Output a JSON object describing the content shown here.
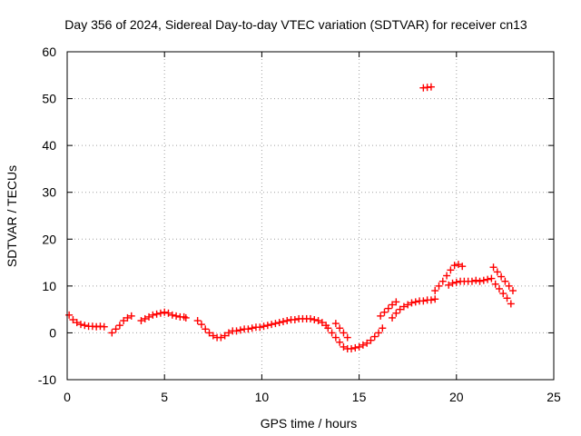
{
  "chart_data": {
    "type": "scatter",
    "title": "Day 356 of 2024, Sidereal Day-to-day VTEC variation (SDTVAR) for receiver cn13",
    "xlabel": "GPS time / hours",
    "ylabel": "SDTVAR / TECUs",
    "xlim": [
      0,
      25
    ],
    "ylim": [
      -10,
      60
    ],
    "xticks": [
      0,
      5,
      10,
      15,
      20,
      25
    ],
    "yticks": [
      -10,
      0,
      10,
      20,
      30,
      40,
      50,
      60
    ],
    "grid": true,
    "marker": "+",
    "color": "#ff0000",
    "series": [
      {
        "name": "SDTVAR",
        "x": [
          0.1,
          0.3,
          0.5,
          0.7,
          0.9,
          1.1,
          1.3,
          1.5,
          1.7,
          1.9,
          2.3,
          2.5,
          2.7,
          2.9,
          3.1,
          3.3,
          3.8,
          4.0,
          4.2,
          4.4,
          4.6,
          4.8,
          5.0,
          5.2,
          5.4,
          5.6,
          5.8,
          6.0,
          6.1,
          6.7,
          6.9,
          7.1,
          7.3,
          7.5,
          7.7,
          7.9,
          8.1,
          8.3,
          8.5,
          8.7,
          8.9,
          9.1,
          9.3,
          9.5,
          9.7,
          9.9,
          10.1,
          10.3,
          10.5,
          10.7,
          10.9,
          11.1,
          11.3,
          11.5,
          11.7,
          11.9,
          12.1,
          12.3,
          12.5,
          12.7,
          12.9,
          13.1,
          13.3,
          13.4,
          13.6,
          13.8,
          14.0,
          14.2,
          14.4,
          14.6,
          14.8,
          15.0,
          15.2,
          15.4,
          15.6,
          15.8,
          16.0,
          16.2,
          13.8,
          14.0,
          14.2,
          14.4,
          16.1,
          16.3,
          16.5,
          16.7,
          16.9,
          16.7,
          16.9,
          17.1,
          17.3,
          17.5,
          17.7,
          17.9,
          18.1,
          18.3,
          18.5,
          18.7,
          18.9,
          18.3,
          18.5,
          18.7,
          18.9,
          19.1,
          19.3,
          19.5,
          19.7,
          19.9,
          20.1,
          20.3,
          19.6,
          19.8,
          20.0,
          20.2,
          20.4,
          20.6,
          20.8,
          21.0,
          21.2,
          21.4,
          21.6,
          21.8,
          21.9,
          22.1,
          22.3,
          22.5,
          22.7,
          22.9,
          22.0,
          22.2,
          22.4,
          22.6,
          22.8
        ],
        "y": [
          3.8,
          2.8,
          2.2,
          1.8,
          1.6,
          1.4,
          1.4,
          1.3,
          1.4,
          1.3,
          0.0,
          0.8,
          1.6,
          2.6,
          3.2,
          3.6,
          2.6,
          3.0,
          3.4,
          3.8,
          4.0,
          4.2,
          4.4,
          4.2,
          3.8,
          3.6,
          3.4,
          3.4,
          3.2,
          2.6,
          1.8,
          0.8,
          0.0,
          -0.6,
          -1.0,
          -1.0,
          -0.6,
          0.0,
          0.4,
          0.4,
          0.6,
          0.8,
          0.8,
          1.0,
          1.2,
          1.2,
          1.4,
          1.6,
          1.8,
          2.0,
          2.2,
          2.4,
          2.6,
          2.8,
          2.8,
          3.0,
          3.0,
          3.0,
          3.0,
          2.8,
          2.6,
          2.2,
          1.6,
          1.0,
          0.0,
          -1.0,
          -2.0,
          -3.0,
          -3.4,
          -3.4,
          -3.2,
          -3.0,
          -2.6,
          -2.2,
          -1.6,
          -0.8,
          0.0,
          1.0,
          2.0,
          1.0,
          0.0,
          -1.0,
          3.6,
          4.4,
          5.2,
          6.0,
          6.6,
          3.2,
          4.2,
          5.0,
          5.6,
          6.0,
          6.4,
          6.6,
          6.8,
          6.8,
          7.0,
          7.0,
          7.2,
          52.3,
          52.4,
          52.5,
          9.0,
          10.0,
          11.0,
          12.2,
          13.4,
          14.4,
          14.6,
          14.2,
          10.2,
          10.6,
          10.8,
          11.0,
          11.0,
          11.0,
          11.0,
          11.2,
          11.0,
          11.2,
          11.4,
          11.6,
          14.0,
          13.0,
          12.0,
          11.0,
          10.0,
          9.0,
          10.4,
          9.4,
          8.4,
          7.4,
          6.2
        ]
      }
    ]
  }
}
